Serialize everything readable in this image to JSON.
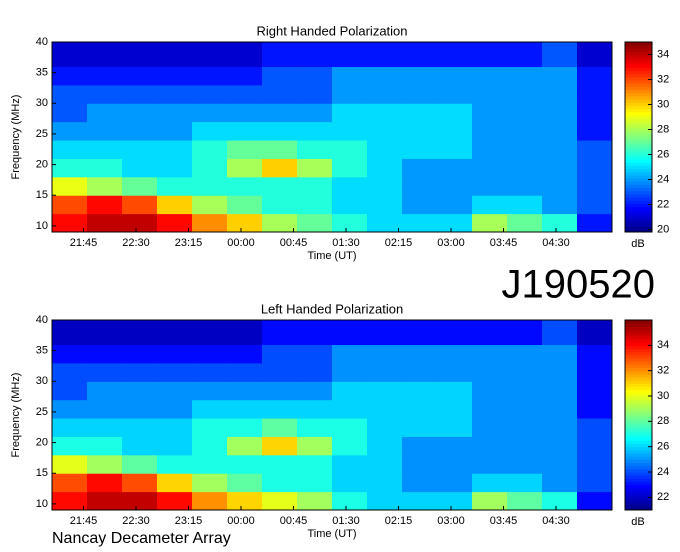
{
  "chart_data": [
    {
      "type": "heatmap",
      "title": "Right Handed Polarization",
      "x_label": "Time (UT)",
      "y_label": "Frequency (MHz)",
      "colorbar_label": "dB",
      "colormap": "jet",
      "xlim": [
        21.3,
        29.3
      ],
      "ylim": [
        9,
        40
      ],
      "xticks": [
        {
          "value": 21.75,
          "label": "21:45"
        },
        {
          "value": 22.5,
          "label": "22:30"
        },
        {
          "value": 23.25,
          "label": "23:15"
        },
        {
          "value": 24,
          "label": "00:00"
        },
        {
          "value": 24.75,
          "label": "00:45"
        },
        {
          "value": 25.5,
          "label": "01:30"
        },
        {
          "value": 26.25,
          "label": "02:15"
        },
        {
          "value": 27,
          "label": "03:00"
        },
        {
          "value": 27.75,
          "label": "03:45"
        },
        {
          "value": 28.5,
          "label": "04:30"
        }
      ],
      "yticks": [
        10,
        15,
        20,
        25,
        30,
        35,
        40
      ],
      "clim": [
        19.8,
        35
      ],
      "colorbar_ticks": [
        20,
        22,
        24,
        26,
        28,
        30,
        32,
        34
      ],
      "x_bins": [
        21.3,
        21.8,
        22.3,
        22.8,
        23.3,
        23.8,
        24.3,
        24.8,
        25.3,
        25.8,
        26.3,
        26.8,
        27.3,
        27.8,
        28.3,
        28.8,
        29.3
      ],
      "y_bins": [
        9,
        12,
        15,
        18,
        21,
        24,
        27,
        30,
        33,
        36,
        40
      ],
      "z": [
        [
          33,
          34,
          34,
          33,
          31,
          30,
          28,
          27,
          26,
          25,
          25,
          25,
          28,
          27,
          26,
          22
        ],
        [
          32,
          33,
          32,
          30,
          28,
          27,
          26,
          26,
          25,
          25,
          24,
          24,
          25,
          25,
          24,
          23
        ],
        [
          29,
          28,
          27,
          26,
          26,
          26,
          26,
          26,
          25,
          25,
          24,
          24,
          24,
          24,
          24,
          23
        ],
        [
          26,
          26,
          25,
          25,
          26,
          28,
          30,
          28,
          26,
          25,
          24,
          24,
          24,
          24,
          24,
          23
        ],
        [
          25,
          25,
          25,
          25,
          26,
          27,
          27,
          26,
          26,
          25,
          25,
          25,
          24,
          24,
          24,
          23
        ],
        [
          24,
          24,
          24,
          24,
          25,
          25,
          25,
          25,
          25,
          25,
          25,
          25,
          24,
          24,
          24,
          22
        ],
        [
          23,
          24,
          24,
          24,
          24,
          24,
          24,
          24,
          25,
          25,
          25,
          25,
          24,
          24,
          24,
          22
        ],
        [
          23,
          23,
          23,
          23,
          23,
          23,
          23,
          23,
          24,
          24,
          24,
          24,
          24,
          24,
          24,
          22
        ],
        [
          22,
          22,
          22,
          22,
          22,
          22,
          23,
          23,
          24,
          24,
          24,
          24,
          24,
          24,
          24,
          22
        ],
        [
          21,
          21,
          21,
          21,
          21,
          21,
          22,
          22,
          22,
          22,
          22,
          22,
          22,
          22,
          23,
          21
        ]
      ]
    },
    {
      "type": "heatmap",
      "title": "Left Handed Polarization",
      "x_label": "Time (UT)",
      "y_label": "Frequency (MHz)",
      "colorbar_label": "dB",
      "colormap": "jet",
      "xlim": [
        21.3,
        29.3
      ],
      "ylim": [
        9,
        40
      ],
      "xticks": [
        {
          "value": 21.75,
          "label": "21:45"
        },
        {
          "value": 22.5,
          "label": "22:30"
        },
        {
          "value": 23.25,
          "label": "23:15"
        },
        {
          "value": 24,
          "label": "00:00"
        },
        {
          "value": 24.75,
          "label": "00:45"
        },
        {
          "value": 25.5,
          "label": "01:30"
        },
        {
          "value": 26.25,
          "label": "02:15"
        },
        {
          "value": 27,
          "label": "03:00"
        },
        {
          "value": 27.75,
          "label": "03:45"
        },
        {
          "value": 28.5,
          "label": "04:30"
        }
      ],
      "yticks": [
        10,
        15,
        20,
        25,
        30,
        35,
        40
      ],
      "clim": [
        21,
        36
      ],
      "colorbar_ticks": [
        22,
        24,
        26,
        28,
        30,
        32,
        34
      ],
      "x_bins": [
        21.3,
        21.8,
        22.3,
        22.8,
        23.3,
        23.8,
        24.3,
        24.8,
        25.3,
        25.8,
        26.3,
        26.8,
        27.3,
        27.8,
        28.3,
        28.8,
        29.3
      ],
      "y_bins": [
        9,
        12,
        15,
        18,
        21,
        24,
        27,
        30,
        33,
        36,
        40
      ],
      "z": [
        [
          34,
          35,
          35,
          34,
          32,
          31,
          30,
          29,
          27,
          26,
          26,
          26,
          29,
          28,
          27,
          23
        ],
        [
          33,
          34,
          33,
          31,
          29,
          28,
          27,
          27,
          26,
          26,
          25,
          25,
          26,
          26,
          25,
          24
        ],
        [
          30,
          29,
          28,
          27,
          27,
          27,
          27,
          27,
          26,
          26,
          25,
          25,
          25,
          25,
          25,
          24
        ],
        [
          27,
          27,
          26,
          26,
          27,
          29,
          31,
          29,
          27,
          26,
          25,
          25,
          25,
          25,
          25,
          24
        ],
        [
          26,
          26,
          26,
          26,
          27,
          27,
          28,
          27,
          27,
          26,
          26,
          26,
          25,
          25,
          25,
          24
        ],
        [
          25,
          25,
          25,
          25,
          26,
          26,
          26,
          26,
          26,
          26,
          26,
          26,
          25,
          25,
          25,
          23
        ],
        [
          24,
          25,
          25,
          25,
          25,
          25,
          25,
          25,
          26,
          26,
          26,
          26,
          25,
          25,
          25,
          23
        ],
        [
          24,
          24,
          24,
          24,
          24,
          24,
          24,
          24,
          25,
          25,
          25,
          25,
          25,
          25,
          25,
          23
        ],
        [
          23,
          23,
          23,
          23,
          23,
          23,
          24,
          24,
          25,
          25,
          25,
          25,
          25,
          25,
          25,
          23
        ],
        [
          22,
          22,
          22,
          22,
          22,
          22,
          23,
          23,
          23,
          23,
          23,
          23,
          23,
          23,
          24,
          22
        ]
      ]
    }
  ],
  "figure": {
    "label": "J190520",
    "footer": "Nancay Decameter Array"
  }
}
